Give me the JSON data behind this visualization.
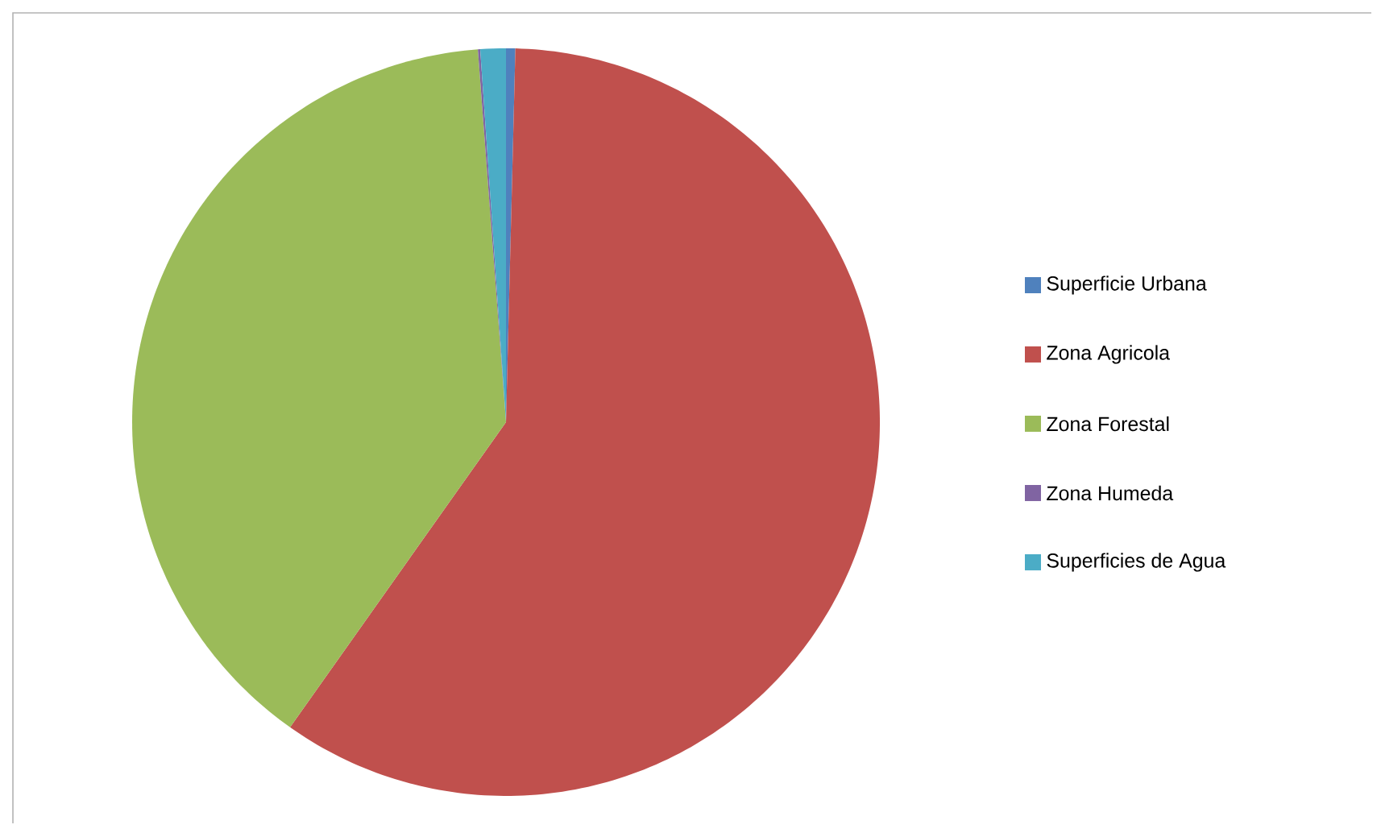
{
  "chart_data": {
    "type": "pie",
    "categories": [
      "Superficie Urbana",
      "Zona Agricola",
      "Zona Forestal",
      "Zona Humeda",
      "Superficies de Agua"
    ],
    "values": [
      0.4,
      59.4,
      39.0,
      0.1,
      1.1
    ],
    "colors": [
      "#4f81bd",
      "#c0504d",
      "#9bbb59",
      "#8064a2",
      "#4bacc6"
    ],
    "legend": "right"
  }
}
